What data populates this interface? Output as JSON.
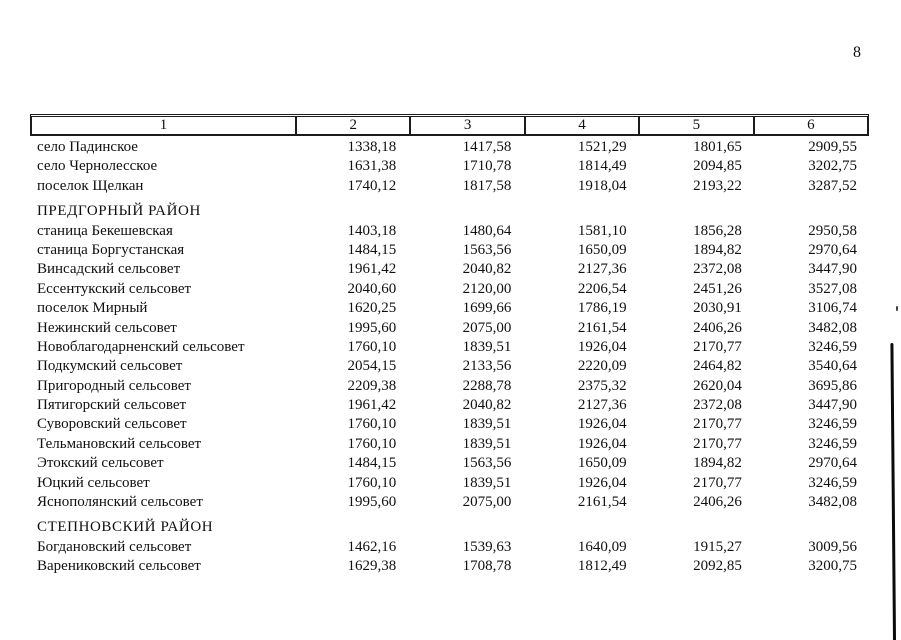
{
  "page": {
    "number": "8"
  },
  "colors": {
    "ink": "#101010",
    "paper": "#ffffff"
  },
  "table": {
    "columns": [
      "1",
      "2",
      "3",
      "4",
      "5",
      "6"
    ],
    "sections": [
      {
        "title": "",
        "rows": [
          [
            "село Падинское",
            "1338,18",
            "1417,58",
            "1521,29",
            "1801,65",
            "2909,55"
          ],
          [
            "село Чернолесское",
            "1631,38",
            "1710,78",
            "1814,49",
            "2094,85",
            "3202,75"
          ],
          [
            "поселок Щелкан",
            "1740,12",
            "1817,58",
            "1918,04",
            "2193,22",
            "3287,52"
          ]
        ]
      },
      {
        "title": "ПРЕДГОРНЫЙ РАЙОН",
        "rows": [
          [
            "станица Бекешевская",
            "1403,18",
            "1480,64",
            "1581,10",
            "1856,28",
            "2950,58"
          ],
          [
            "станица Боргустанская",
            "1484,15",
            "1563,56",
            "1650,09",
            "1894,82",
            "2970,64"
          ],
          [
            "Винсадский сельсовет",
            "1961,42",
            "2040,82",
            "2127,36",
            "2372,08",
            "3447,90"
          ],
          [
            "Ессентукский сельсовет",
            "2040,60",
            "2120,00",
            "2206,54",
            "2451,26",
            "3527,08"
          ],
          [
            "поселок Мирный",
            "1620,25",
            "1699,66",
            "1786,19",
            "2030,91",
            "3106,74"
          ],
          [
            "Нежинский сельсовет",
            "1995,60",
            "2075,00",
            "2161,54",
            "2406,26",
            "3482,08"
          ],
          [
            "Новоблагодарненский сельсовет",
            "1760,10",
            "1839,51",
            "1926,04",
            "2170,77",
            "3246,59"
          ],
          [
            "Подкумский сельсовет",
            "2054,15",
            "2133,56",
            "2220,09",
            "2464,82",
            "3540,64"
          ],
          [
            "Пригородный сельсовет",
            "2209,38",
            "2288,78",
            "2375,32",
            "2620,04",
            "3695,86"
          ],
          [
            "Пятигорский сельсовет",
            "1961,42",
            "2040,82",
            "2127,36",
            "2372,08",
            "3447,90"
          ],
          [
            "Суворовский сельсовет",
            "1760,10",
            "1839,51",
            "1926,04",
            "2170,77",
            "3246,59"
          ],
          [
            "Тельмановский сельсовет",
            "1760,10",
            "1839,51",
            "1926,04",
            "2170,77",
            "3246,59"
          ],
          [
            "Этокский сельсовет",
            "1484,15",
            "1563,56",
            "1650,09",
            "1894,82",
            "2970,64"
          ],
          [
            "Юцкий сельсовет",
            "1760,10",
            "1839,51",
            "1926,04",
            "2170,77",
            "3246,59"
          ],
          [
            "Яснополянский сельсовет",
            "1995,60",
            "2075,00",
            "2161,54",
            "2406,26",
            "3482,08"
          ]
        ]
      },
      {
        "title": "СТЕПНОВСКИЙ РАЙОН",
        "rows": [
          [
            "Богдановский сельсовет",
            "1462,16",
            "1539,63",
            "1640,09",
            "1915,27",
            "3009,56"
          ],
          [
            "Варениковский сельсовет",
            "1629,38",
            "1708,78",
            "1812,49",
            "2092,85",
            "3200,75"
          ]
        ]
      }
    ]
  }
}
